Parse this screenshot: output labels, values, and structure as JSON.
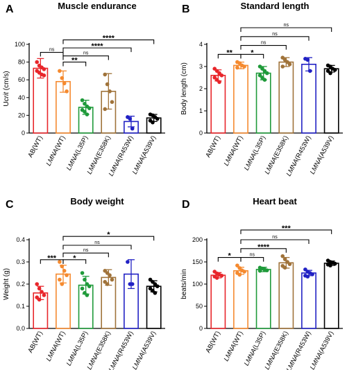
{
  "chart_data": [
    {
      "panel": "A",
      "type": "bar",
      "title": "Muscle endurance",
      "ylabel": "Ucrit (cm/s)",
      "ylabel_italic_part": "crit",
      "ylim": [
        0,
        100
      ],
      "yticks": [
        0,
        20,
        40,
        60,
        80,
        100
      ],
      "categories": [
        {
          "label": "AB(WT)",
          "italic": "",
          "rest": "AB(WT)"
        },
        {
          "label": "LMNA(WT)",
          "italic": "LMNA",
          "rest": "(WT)"
        },
        {
          "label": "LMNA(L35P)",
          "italic": "LMNA",
          "rest": "(L35P)"
        },
        {
          "label": "LMNA(E358K)",
          "italic": "LMNA",
          "rest": "(E358K)"
        },
        {
          "label": "LMNA(R453W)",
          "italic": "LMNA",
          "rest": "(R453W)"
        },
        {
          "label": "LMNA(A539V)",
          "italic": "LMNA",
          "rest": "(A539V)"
        }
      ],
      "colors": [
        "#e8262b",
        "#f58a2f",
        "#1f9a3a",
        "#a0733a",
        "#2121c4",
        "#000000"
      ],
      "values": [
        73,
        58,
        29,
        47,
        13,
        17
      ],
      "errors": [
        11,
        12,
        8,
        20,
        6,
        4
      ],
      "points": [
        [
          80,
          76,
          74,
          72,
          70,
          68,
          66,
          65
        ],
        [
          70,
          62,
          56,
          47
        ],
        [
          37,
          33,
          30,
          28,
          26,
          24,
          21
        ],
        [
          66,
          55,
          47,
          35,
          27
        ],
        [
          18,
          16,
          5
        ],
        [
          21,
          20,
          18,
          16,
          14,
          12
        ]
      ],
      "comparisons": [
        {
          "from": 0,
          "to": 1,
          "label": "ns",
          "y": 91
        },
        {
          "from": 1,
          "to": 2,
          "label": "**",
          "y": 80
        },
        {
          "from": 1,
          "to": 3,
          "label": "ns",
          "y": 87
        },
        {
          "from": 1,
          "to": 4,
          "label": "****",
          "y": 96
        },
        {
          "from": 1,
          "to": 5,
          "label": "****",
          "y": 105
        }
      ]
    },
    {
      "panel": "B",
      "type": "bar",
      "title": "Standard length",
      "ylabel": "Body length (cm)",
      "ylabel_italic_part": "",
      "ylim": [
        0,
        4
      ],
      "yticks": [
        0,
        1,
        2,
        3,
        4
      ],
      "categories": [
        {
          "label": "AB(WT)",
          "italic": "",
          "rest": "AB(WT)"
        },
        {
          "label": "LMNA(WT)",
          "italic": "LMNA",
          "rest": "(WT)"
        },
        {
          "label": "LMNA(L35P)",
          "italic": "LMNA",
          "rest": "(L35P)"
        },
        {
          "label": "LMNA(E358K)",
          "italic": "LMNA",
          "rest": "(E358K)"
        },
        {
          "label": "LMNA(R453W)",
          "italic": "LMNA",
          "rest": "(R453W)"
        },
        {
          "label": "LMNA(A539V)",
          "italic": "LMNA",
          "rest": "(A539V)"
        }
      ],
      "colors": [
        "#e8262b",
        "#f58a2f",
        "#1f9a3a",
        "#a0733a",
        "#2121c4",
        "#000000"
      ],
      "values": [
        2.6,
        3.05,
        2.7,
        3.2,
        3.1,
        2.9
      ],
      "errors": [
        0.25,
        0.15,
        0.3,
        0.2,
        0.3,
        0.15
      ],
      "points": [
        [
          2.9,
          2.8,
          2.7,
          2.6,
          2.5,
          2.4,
          2.3
        ],
        [
          3.2,
          3.15,
          3.05,
          3.0,
          2.95
        ],
        [
          3.0,
          2.9,
          2.8,
          2.7,
          2.6,
          2.5,
          2.4
        ],
        [
          3.4,
          3.3,
          3.2,
          3.1,
          3.0
        ],
        [
          3.35,
          3.3,
          2.8
        ],
        [
          3.05,
          3.0,
          2.9,
          2.85,
          2.8,
          2.7
        ]
      ],
      "comparisons": [
        {
          "from": 0,
          "to": 1,
          "label": "**",
          "y": 3.55
        },
        {
          "from": 1,
          "to": 2,
          "label": "*",
          "y": 3.55
        },
        {
          "from": 1,
          "to": 3,
          "label": "ns",
          "y": 3.95
        },
        {
          "from": 1,
          "to": 4,
          "label": "ns",
          "y": 4.35
        },
        {
          "from": 1,
          "to": 5,
          "label": "ns",
          "y": 4.75
        }
      ]
    },
    {
      "panel": "C",
      "type": "bar",
      "title": "Body weight",
      "ylabel": "Weight (g)",
      "ylabel_italic_part": "",
      "ylim": [
        0,
        0.4
      ],
      "yticks": [
        0.0,
        0.1,
        0.2,
        0.3,
        0.4
      ],
      "categories": [
        {
          "label": "AB(WT)",
          "italic": "",
          "rest": "AB(WT)"
        },
        {
          "label": "LMNA(WT)",
          "italic": "LMNA",
          "rest": "(WT)"
        },
        {
          "label": "LMNA(L35P)",
          "italic": "LMNA",
          "rest": "(L35P)"
        },
        {
          "label": "LMNA(E358K)",
          "italic": "LMNA",
          "rest": "(E358K)"
        },
        {
          "label": "LMNA(R453W)",
          "italic": "LMNA",
          "rest": "(R453W)"
        },
        {
          "label": "LMNA(A539V)",
          "italic": "LMNA",
          "rest": "(A539V)"
        }
      ],
      "colors": [
        "#e8262b",
        "#f58a2f",
        "#1f9a3a",
        "#a0733a",
        "#2121c4",
        "#000000"
      ],
      "values": [
        0.16,
        0.245,
        0.195,
        0.23,
        0.245,
        0.19
      ],
      "errors": [
        0.03,
        0.04,
        0.04,
        0.035,
        0.065,
        0.025
      ],
      "points": [
        [
          0.2,
          0.18,
          0.165,
          0.15,
          0.14,
          0.13
        ],
        [
          0.3,
          0.28,
          0.26,
          0.24,
          0.22,
          0.2
        ],
        [
          0.25,
          0.22,
          0.2,
          0.19,
          0.18,
          0.16,
          0.15
        ],
        [
          0.26,
          0.25,
          0.24,
          0.22,
          0.21,
          0.2
        ],
        [
          0.3,
          0.2,
          0.2
        ],
        [
          0.22,
          0.21,
          0.2,
          0.19,
          0.18,
          0.17,
          0.16
        ]
      ],
      "comparisons": [
        {
          "from": 0,
          "to": 1,
          "label": "***",
          "y": 0.31
        },
        {
          "from": 1,
          "to": 2,
          "label": "*",
          "y": 0.31
        },
        {
          "from": 1,
          "to": 3,
          "label": "ns",
          "y": 0.34
        },
        {
          "from": 1,
          "to": 4,
          "label": "ns",
          "y": 0.375
        },
        {
          "from": 1,
          "to": 5,
          "label": "*",
          "y": 0.415
        }
      ]
    },
    {
      "panel": "D",
      "type": "bar",
      "title": "Heart beat",
      "ylabel": "beats/min",
      "ylabel_italic_part": "",
      "ylim": [
        0,
        200
      ],
      "yticks": [
        0,
        50,
        100,
        150,
        200
      ],
      "categories": [
        {
          "label": "AB(WT)",
          "italic": "",
          "rest": "AB(WT)"
        },
        {
          "label": "LMNA(WT)",
          "italic": "LMNA",
          "rest": "(WT)"
        },
        {
          "label": "LMNA(L35P)",
          "italic": "LMNA",
          "rest": "(L35P)"
        },
        {
          "label": "LMNA(E358K)",
          "italic": "LMNA",
          "rest": "(E358K)"
        },
        {
          "label": "LMNA(R453W)",
          "italic": "LMNA",
          "rest": "(R453W)"
        },
        {
          "label": "LMNA(A539V)",
          "italic": "LMNA",
          "rest": "(A539V)"
        }
      ],
      "colors": [
        "#e8262b",
        "#f58a2f",
        "#1f9a3a",
        "#a0733a",
        "#2121c4",
        "#000000"
      ],
      "values": [
        120,
        130,
        133,
        148,
        125,
        147
      ],
      "errors": [
        6,
        8,
        5,
        12,
        6,
        5
      ],
      "points": [
        [
          128,
          124,
          121,
          119,
          117,
          114
        ],
        [
          142,
          136,
          131,
          128,
          125,
          121
        ],
        [
          137,
          135,
          133,
          131,
          130
        ],
        [
          163,
          156,
          150,
          145,
          141,
          137
        ],
        [
          133,
          128,
          125,
          122,
          119,
          117
        ],
        [
          153,
          150,
          148,
          146,
          144,
          142
        ]
      ],
      "comparisons": [
        {
          "from": 0,
          "to": 1,
          "label": "*",
          "y": 160
        },
        {
          "from": 1,
          "to": 2,
          "label": "ns",
          "y": 160
        },
        {
          "from": 1,
          "to": 3,
          "label": "****",
          "y": 180
        },
        {
          "from": 1,
          "to": 4,
          "label": "ns",
          "y": 200
        },
        {
          "from": 1,
          "to": 5,
          "label": "***",
          "y": 222
        }
      ]
    }
  ]
}
